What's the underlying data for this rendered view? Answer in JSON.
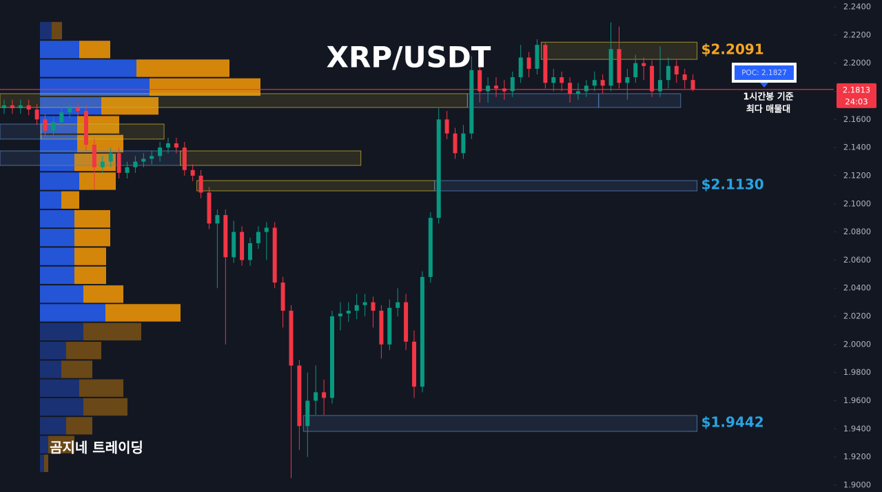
{
  "chart_data": {
    "type": "candlestick",
    "title": "XRP/USDT",
    "watermark": "곰지네 트레이딩",
    "up_color": "#089981",
    "down_color": "#f23645",
    "series": {
      "open": [
        2.168,
        2.17,
        2.168,
        2.17,
        2.167,
        2.16,
        2.152,
        2.158,
        2.165,
        2.168,
        2.166,
        2.142,
        2.126,
        2.13,
        2.136,
        2.122,
        2.126,
        2.13,
        2.132,
        2.134,
        2.14,
        2.143,
        2.14,
        2.124,
        2.12,
        2.108,
        2.086,
        2.092,
        2.062,
        2.08,
        2.06,
        2.072,
        2.08,
        2.083,
        2.044,
        2.024,
        1.985,
        1.942,
        1.96,
        1.966,
        1.962,
        2.02,
        2.022,
        2.024,
        2.028,
        2.03,
        2.024,
        2.0,
        2.026,
        2.03,
        2.002,
        1.97,
        2.048,
        2.09,
        2.16,
        2.15,
        2.136,
        2.15,
        2.195,
        2.18,
        2.184,
        2.182,
        2.18,
        2.19,
        2.204,
        2.196,
        2.213,
        2.186,
        2.19,
        2.186,
        2.178,
        2.18,
        2.184,
        2.188,
        2.184,
        2.21,
        2.186,
        2.19,
        2.2,
        2.198,
        2.18,
        2.188,
        2.198,
        2.192,
        2.188
      ],
      "high": [
        2.174,
        2.174,
        2.174,
        2.174,
        2.171,
        2.164,
        2.162,
        2.169,
        2.172,
        2.172,
        2.17,
        2.146,
        2.134,
        2.14,
        2.14,
        2.13,
        2.134,
        2.136,
        2.138,
        2.144,
        2.147,
        2.147,
        2.144,
        2.128,
        2.124,
        2.112,
        2.096,
        2.096,
        2.088,
        2.084,
        2.076,
        2.084,
        2.087,
        2.087,
        2.048,
        2.028,
        1.989,
        1.98,
        1.985,
        1.975,
        2.024,
        2.03,
        2.03,
        2.036,
        2.036,
        2.034,
        2.028,
        2.032,
        2.04,
        2.036,
        2.01,
        2.052,
        2.094,
        2.168,
        2.166,
        2.154,
        2.156,
        2.205,
        2.199,
        2.19,
        2.19,
        2.188,
        2.194,
        2.213,
        2.208,
        2.217,
        2.215,
        2.196,
        2.194,
        2.19,
        2.186,
        2.188,
        2.194,
        2.192,
        2.229,
        2.226,
        2.196,
        2.206,
        2.204,
        2.202,
        2.212,
        2.204,
        2.202,
        2.196,
        2.192
      ],
      "low": [
        2.164,
        2.164,
        2.164,
        2.163,
        2.156,
        2.148,
        2.148,
        2.154,
        2.161,
        2.162,
        2.138,
        2.11,
        2.122,
        2.126,
        2.118,
        2.118,
        2.122,
        2.126,
        2.128,
        2.13,
        2.136,
        2.136,
        2.12,
        2.116,
        2.104,
        2.082,
        2.04,
        2.0,
        2.058,
        2.056,
        2.056,
        2.068,
        2.06,
        2.04,
        2.012,
        1.905,
        1.925,
        1.92,
        1.95,
        1.95,
        1.958,
        2.01,
        2.016,
        2.018,
        2.02,
        2.012,
        1.99,
        1.996,
        2.02,
        1.996,
        1.962,
        1.966,
        2.044,
        2.086,
        2.146,
        2.132,
        2.132,
        2.146,
        2.172,
        2.172,
        2.176,
        2.174,
        2.176,
        2.186,
        2.19,
        2.192,
        2.182,
        2.18,
        2.18,
        2.172,
        2.174,
        2.176,
        2.18,
        2.178,
        2.18,
        2.182,
        2.174,
        2.186,
        2.188,
        2.176,
        2.176,
        2.182,
        2.186,
        2.182,
        2.18
      ],
      "close": [
        2.17,
        2.168,
        2.17,
        2.167,
        2.16,
        2.152,
        2.158,
        2.165,
        2.168,
        2.166,
        2.142,
        2.126,
        2.13,
        2.136,
        2.122,
        2.126,
        2.13,
        2.132,
        2.134,
        2.14,
        2.143,
        2.14,
        2.124,
        2.12,
        2.108,
        2.086,
        2.092,
        2.062,
        2.08,
        2.06,
        2.072,
        2.08,
        2.083,
        2.044,
        2.024,
        1.985,
        1.942,
        1.96,
        1.966,
        1.962,
        2.02,
        2.022,
        2.024,
        2.028,
        2.03,
        2.024,
        2.0,
        2.026,
        2.03,
        2.002,
        1.97,
        2.048,
        2.09,
        2.16,
        2.15,
        2.136,
        2.15,
        2.195,
        2.18,
        2.184,
        2.182,
        2.18,
        2.19,
        2.204,
        2.196,
        2.213,
        2.186,
        2.19,
        2.186,
        2.178,
        2.18,
        2.184,
        2.188,
        2.184,
        2.21,
        2.186,
        2.19,
        2.2,
        2.198,
        2.18,
        2.188,
        2.198,
        2.192,
        2.188,
        2.1813
      ]
    },
    "ylim": [
      1.8951,
      2.2449
    ],
    "yticks": [
      {
        "value": 2.24,
        "label": "2.2400"
      },
      {
        "value": 2.22,
        "label": "2.2200"
      },
      {
        "value": 2.2,
        "label": "2.2000"
      },
      {
        "value": 2.18,
        "label": "2.1800"
      },
      {
        "value": 2.16,
        "label": "2.1600"
      },
      {
        "value": 2.14,
        "label": "2.1400"
      },
      {
        "value": 2.12,
        "label": "2.1200"
      },
      {
        "value": 2.1,
        "label": "2.1000"
      },
      {
        "value": 2.08,
        "label": "2.0800"
      },
      {
        "value": 2.06,
        "label": "2.0600"
      },
      {
        "value": 2.04,
        "label": "2.0400"
      },
      {
        "value": 2.02,
        "label": "2.0200"
      },
      {
        "value": 2.0,
        "label": "2.0000"
      },
      {
        "value": 1.98,
        "label": "1.9800"
      },
      {
        "value": 1.96,
        "label": "1.9600"
      },
      {
        "value": 1.94,
        "label": "1.9400"
      },
      {
        "value": 1.92,
        "label": "1.9200"
      },
      {
        "value": 1.9,
        "label": "1.9000"
      }
    ],
    "last_price": {
      "value": 2.1813,
      "label": "2.1813",
      "countdown": "24:03",
      "color": "#f23645"
    },
    "poc": {
      "value": 2.1827,
      "label": "POC: 2.1827",
      "note": [
        "1시간봉 기준",
        "최다 매물대"
      ],
      "color": "#2962ff"
    },
    "zones": [
      {
        "top": 2.2149,
        "bottom": 2.2027,
        "start": 66,
        "end": 84,
        "color": "#c8b432",
        "label": "$2.2091",
        "value": 2.2091,
        "label_color": "#f5a623"
      },
      {
        "top": 2.1783,
        "bottom": 2.1685,
        "start": 0,
        "end": 56,
        "color": "#c8b432"
      },
      {
        "top": 2.1783,
        "bottom": 2.1685,
        "start": 57,
        "end": 72,
        "color": "#5a88c0"
      },
      {
        "top": 2.1783,
        "bottom": 2.1685,
        "start": 73,
        "end": 82,
        "color": "#5a88c0"
      },
      {
        "top": 2.1567,
        "bottom": 2.146,
        "start": 0,
        "end": 4,
        "color": "#5a88c0"
      },
      {
        "top": 2.1567,
        "bottom": 2.146,
        "start": 5,
        "end": 19,
        "color": "#c8b432"
      },
      {
        "top": 2.1376,
        "bottom": 2.1273,
        "start": 0,
        "end": 21,
        "color": "#5a88c0"
      },
      {
        "top": 2.1376,
        "bottom": 2.1273,
        "start": 22,
        "end": 43,
        "color": "#c8b432"
      },
      {
        "top": 2.1165,
        "bottom": 2.1092,
        "start": 24,
        "end": 52,
        "color": "#c8b432"
      },
      {
        "top": 2.1165,
        "bottom": 2.1092,
        "start": 53,
        "end": 84,
        "color": "#5a88c0",
        "label": "$2.1130",
        "value": 2.113,
        "label_color": "#29a3e0"
      },
      {
        "top": 1.9495,
        "bottom": 1.9382,
        "start": 37,
        "end": 84,
        "color": "#5a88c0",
        "label": "$1.9442",
        "value": 1.9442,
        "label_color": "#29a3e0"
      }
    ],
    "volume_profile": {
      "levels": [
        2.2231,
        2.2097,
        2.1964,
        2.183,
        2.1696,
        2.1562,
        2.1428,
        2.1295,
        2.1161,
        2.1027,
        2.0893,
        2.076,
        2.0626,
        2.0492,
        2.0358,
        2.0225,
        2.0091,
        1.9957,
        1.9823,
        1.969,
        1.9556,
        1.9422,
        1.9288,
        1.9155
      ],
      "buy": [
        17,
        57,
        140,
        159,
        89,
        54,
        54,
        50,
        57,
        31,
        50,
        50,
        50,
        50,
        63,
        95,
        63,
        38,
        31,
        57,
        63,
        38,
        12,
        6
      ],
      "sell": [
        15,
        45,
        135,
        161,
        83,
        61,
        67,
        60,
        53,
        26,
        52,
        52,
        46,
        46,
        58,
        109,
        84,
        51,
        45,
        64,
        64,
        38,
        38,
        6
      ],
      "buy_color": "#2355d6",
      "sell_color": "#d4860b",
      "value_area": [
        2.0158,
        2.2164
      ]
    }
  }
}
